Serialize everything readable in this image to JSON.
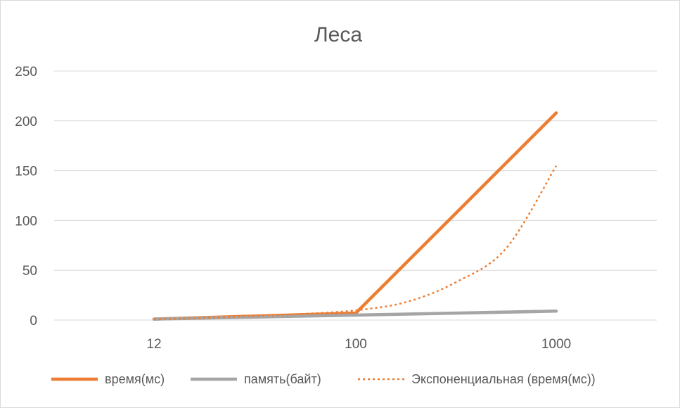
{
  "chart_data": {
    "type": "line",
    "title": "Леса",
    "categories": [
      "12",
      "100",
      "1000"
    ],
    "series": [
      {
        "name": "время(мс)",
        "values": [
          1,
          7,
          208
        ],
        "color": "#ed7d31",
        "style": "solid"
      },
      {
        "name": "память(байт)",
        "values": [
          1,
          5,
          9
        ],
        "color": "#a5a5a5",
        "style": "solid"
      },
      {
        "name": "Экспоненциальная (время(мс))",
        "trendline_of": "время(мс)",
        "kind": "exponential",
        "color": "#ed7d31",
        "style": "dotted"
      }
    ],
    "trendline_samples": {
      "x": [
        0,
        0.25,
        0.5,
        0.75,
        1,
        1.25,
        1.5,
        1.75,
        2
      ],
      "y": [
        0.9,
        2.0,
        4.1,
        6.3,
        9.8,
        18,
        38,
        72,
        155
      ]
    },
    "ylim": [
      0,
      250
    ],
    "yticks": [
      "0",
      "50",
      "100",
      "150",
      "200",
      "250"
    ],
    "grid": true,
    "legend_position": "bottom"
  }
}
